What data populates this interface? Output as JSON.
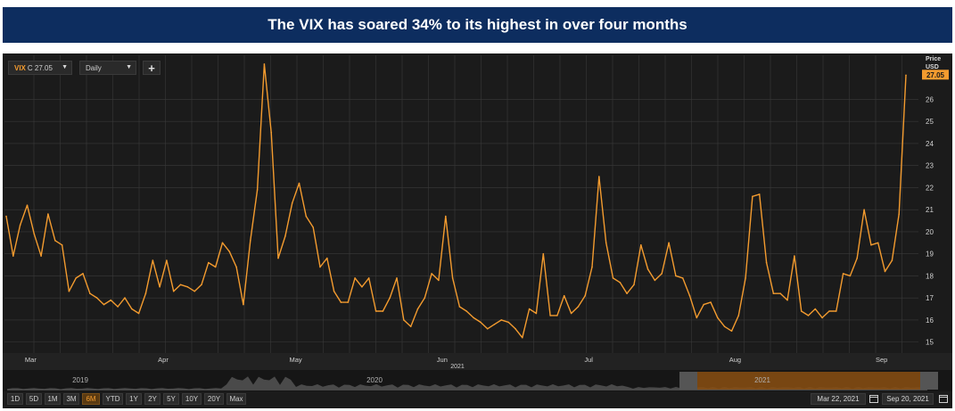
{
  "title": "The VIX has soared 34% to its highest in over four months",
  "toolbar": {
    "symbol": "VIX",
    "symbol_value": "C 27.05",
    "period": "Daily",
    "add_label": "+"
  },
  "unit_label_line1": "Price",
  "unit_label_line2": "USD",
  "last_price_label": "27.05",
  "colors": {
    "line": "#f39b2f",
    "background": "#1b1b1b",
    "grid": "#3a3a3a"
  },
  "navigator": {
    "years": [
      "2019",
      "2020",
      "2021"
    ]
  },
  "range_buttons": [
    "1D",
    "5D",
    "1M",
    "3M",
    "6M",
    "YTD",
    "1Y",
    "2Y",
    "5Y",
    "10Y",
    "20Y",
    "Max"
  ],
  "active_range": "6M",
  "date_from": "Mar 22, 2021",
  "date_to": "Sep 20, 2021",
  "chart_data": {
    "type": "line",
    "title": "",
    "xlabel": "2021",
    "ylabel": "Price USD",
    "series": [
      {
        "name": "VIX",
        "values": [
          20.7,
          18.9,
          20.3,
          21.2,
          19.9,
          18.9,
          20.8,
          19.6,
          19.4,
          17.3,
          17.9,
          18.1,
          17.2,
          17.0,
          16.7,
          16.9,
          16.6,
          17.0,
          16.5,
          16.3,
          17.2,
          18.7,
          17.5,
          18.7,
          17.3,
          17.6,
          17.5,
          17.3,
          17.6,
          18.6,
          18.4,
          19.5,
          19.1,
          18.4,
          16.7,
          19.6,
          21.9,
          27.6,
          24.5,
          18.8,
          19.8,
          21.3,
          22.2,
          20.7,
          20.2,
          18.4,
          18.8,
          17.3,
          16.8,
          16.8,
          17.9,
          17.5,
          17.9,
          16.4,
          16.4,
          17.0,
          17.9,
          16.0,
          15.7,
          16.5,
          17.0,
          18.1,
          17.8,
          20.7,
          17.9,
          16.6,
          16.4,
          16.1,
          15.9,
          15.6,
          15.8,
          16.0,
          15.9,
          15.6,
          15.2,
          16.5,
          16.3,
          19.0,
          16.2,
          16.2,
          17.1,
          16.3,
          16.6,
          17.1,
          18.4,
          22.5,
          19.5,
          17.9,
          17.7,
          17.2,
          17.6,
          19.4,
          18.3,
          17.8,
          18.1,
          19.5,
          18.0,
          17.9,
          17.1,
          16.1,
          16.7,
          16.8,
          16.1,
          15.7,
          15.5,
          16.2,
          17.9,
          21.6,
          21.7,
          18.6,
          17.2,
          17.2,
          16.9,
          18.9,
          16.4,
          16.2,
          16.5,
          16.1,
          16.4,
          16.4,
          18.1,
          18.0,
          18.8,
          21.0,
          19.4,
          19.5,
          18.2,
          18.7,
          20.8,
          27.1
        ]
      }
    ],
    "x_labels": [
      {
        "label": "Mar",
        "index": 3.5
      },
      {
        "label": "Apr",
        "index": 22.5
      },
      {
        "label": "May",
        "index": 41.5
      },
      {
        "label": "Jun",
        "index": 62.5
      },
      {
        "label": "Jul",
        "index": 83.5
      },
      {
        "label": "Aug",
        "index": 104.5
      },
      {
        "label": "Sep",
        "index": 125.5
      }
    ],
    "y_ticks": [
      15,
      16,
      17,
      18,
      19,
      20,
      21,
      22,
      23,
      24,
      25,
      26
    ],
    "ylim": [
      14.5,
      28.0
    ],
    "grid": true,
    "legend": "none"
  }
}
